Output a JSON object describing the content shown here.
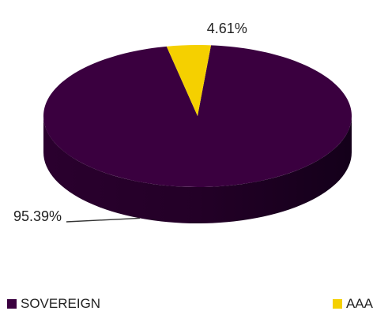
{
  "chart_data": {
    "type": "pie",
    "title": "",
    "categories": [
      "SOVEREIGN",
      "AAA"
    ],
    "values": [
      95.39,
      4.61
    ],
    "data_labels": [
      "95.39%",
      "4.61%"
    ],
    "colors": [
      "#3a003f",
      "#f5d000"
    ],
    "style": "3d",
    "legend_position": "bottom"
  }
}
